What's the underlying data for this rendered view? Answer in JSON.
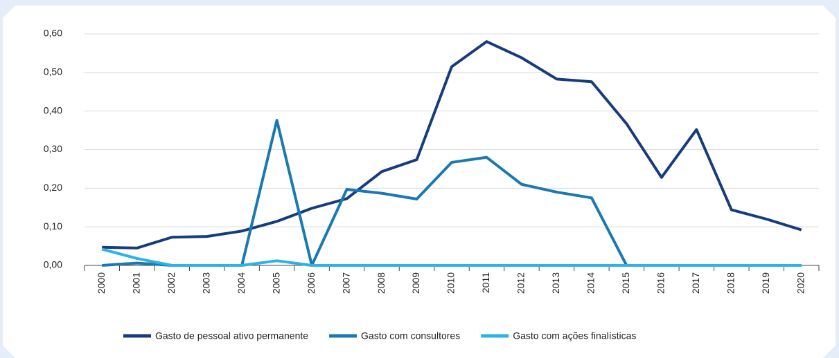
{
  "chart_data": {
    "type": "line",
    "categories": [
      "2000",
      "2001",
      "2002",
      "2003",
      "2004",
      "2005",
      "2006",
      "2007",
      "2008",
      "2009",
      "2010",
      "2011",
      "2012",
      "2013",
      "2014",
      "2015",
      "2016",
      "2017",
      "2018",
      "2019",
      "2020"
    ],
    "series": [
      {
        "name": "Gasto de pessoal ativo permanente",
        "color": "#173c7c",
        "values": [
          0.047,
          0.045,
          0.073,
          0.075,
          0.089,
          0.114,
          0.148,
          0.173,
          0.243,
          0.274,
          0.515,
          0.58,
          0.538,
          0.483,
          0.476,
          0.367,
          0.228,
          0.352,
          0.144,
          0.12,
          0.092
        ]
      },
      {
        "name": "Gasto com consultores",
        "color": "#1979b0",
        "values": [
          0,
          0.006,
          0,
          0,
          0,
          0.376,
          0,
          0.197,
          0.187,
          0.172,
          0.267,
          0.28,
          0.21,
          0.19,
          0.175,
          0,
          0,
          0,
          0,
          0,
          0
        ]
      },
      {
        "name": "Gasto com ações finalísticas",
        "color": "#2bb3e6",
        "values": [
          0.042,
          0.018,
          0,
          0,
          0,
          0.012,
          0,
          0,
          0,
          0,
          0,
          0,
          0,
          0,
          0,
          0,
          0,
          0,
          0,
          0,
          0
        ]
      }
    ],
    "ylim": [
      0,
      0.6
    ],
    "yticks": [
      {
        "value": 0,
        "label": "0,00"
      },
      {
        "value": 0.1,
        "label": "0,10"
      },
      {
        "value": 0.2,
        "label": "0,20"
      },
      {
        "value": 0.3,
        "label": "0,30"
      },
      {
        "value": 0.4,
        "label": "0,40"
      },
      {
        "value": 0.5,
        "label": "0,50"
      },
      {
        "value": 0.6,
        "label": "0,60"
      }
    ],
    "grid": true,
    "legend": "bottom"
  }
}
